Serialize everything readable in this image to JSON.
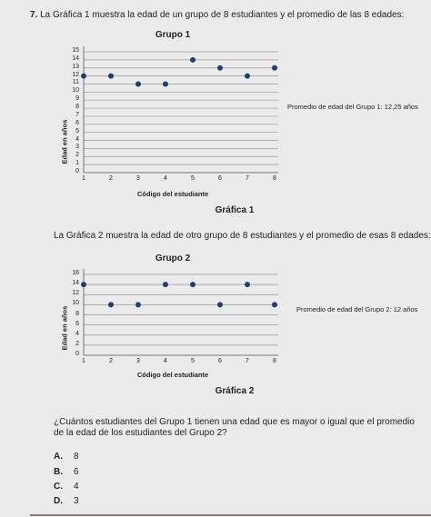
{
  "question": {
    "number": "7.",
    "intro1": "La Gráfica 1 muestra la edad de un grupo de 8 estudiantes y el promedio de las 8 edades:",
    "intro2": "La Gráfica 2 muestra la edad de otro grupo de 8 estudiantes y el promedio de esas 8 edades:",
    "prompt": "¿Cuántos estudiantes del Grupo 1 tienen una edad que es mayor o igual que el promedio de la edad de los estudiantes del Grupo 2?",
    "options": [
      {
        "letter": "A.",
        "text": "8"
      },
      {
        "letter": "B.",
        "text": "6"
      },
      {
        "letter": "C.",
        "text": "4"
      },
      {
        "letter": "D.",
        "text": "3"
      }
    ]
  },
  "chart_data": [
    {
      "type": "scatter",
      "title": "Grupo 1",
      "xlabel": "Código del estudiante",
      "ylabel": "Edad en años",
      "caption": "Gráfica 1",
      "x": [
        1,
        2,
        3,
        4,
        5,
        6,
        7,
        8
      ],
      "values": [
        12,
        12,
        11,
        11,
        14,
        13,
        12,
        13
      ],
      "ylim": [
        0,
        15
      ],
      "yticks": [
        0,
        1,
        2,
        3,
        4,
        5,
        6,
        7,
        8,
        9,
        10,
        11,
        12,
        13,
        14,
        15
      ],
      "xticks": [
        1,
        2,
        3,
        4,
        5,
        6,
        7,
        8
      ],
      "average_label": "Promedio de edad del Grupo 1: 12,25 años",
      "average": 12.25,
      "point_color": "#1f3f73",
      "grid": true
    },
    {
      "type": "scatter",
      "title": "Grupo 2",
      "xlabel": "Código del estudiante",
      "ylabel": "Edad en años",
      "caption": "Gráfica 2",
      "x": [
        1,
        2,
        3,
        4,
        5,
        6,
        7,
        8
      ],
      "values": [
        14,
        10,
        10,
        14,
        14,
        10,
        14,
        10
      ],
      "ylim": [
        0,
        16
      ],
      "yticks": [
        0,
        2,
        4,
        6,
        8,
        10,
        12,
        14,
        16
      ],
      "xticks": [
        1,
        2,
        3,
        4,
        5,
        6,
        7,
        8
      ],
      "average_label": "Promedio de edad del Grupo 2: 12 años",
      "average": 12,
      "point_color": "#1f3f73",
      "grid": true
    }
  ]
}
